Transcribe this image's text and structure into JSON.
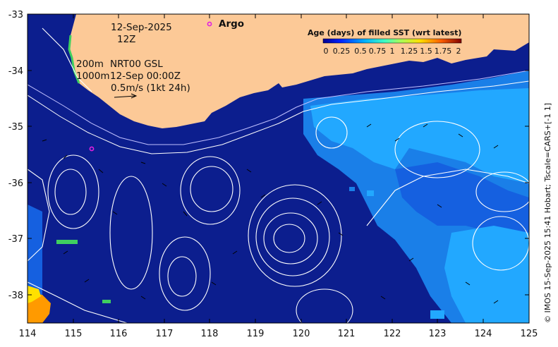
{
  "map": {
    "date_line1": "12-Sep-2025",
    "date_line2": "12Z",
    "argo_label": "Argo",
    "depth_200": "200m",
    "depth_1000": "1000m",
    "product": "NRT00 GSL",
    "product_time": "12-Sep 00:00Z",
    "velocity_scale": "0.5m/s (1kt 24h)",
    "credit": "© IMOS 15-Sep-2025 15:41 Hobart; Tscale=CARS+[-1 1]",
    "colorbar": {
      "title": "Age (days) of filled SST (wrt latest)",
      "ticks": [
        "0",
        "0.25",
        "0.5",
        "0.75",
        "1",
        "1.25",
        "1.5",
        "1.75",
        "2"
      ]
    },
    "lon_ticks": [
      "114",
      "115",
      "116",
      "117",
      "118",
      "119",
      "120",
      "121",
      "122",
      "123",
      "124",
      "125"
    ],
    "lat_ticks": [
      "-33",
      "-34",
      "-35",
      "-36",
      "-37",
      "-38"
    ],
    "colors": {
      "land": "#fcc997",
      "ocean_deep": "#0c1e8e",
      "ocean_light": "#1fa0ff",
      "ocean_mid": "#1560e0",
      "argo_marker": "#e020e0"
    }
  }
}
